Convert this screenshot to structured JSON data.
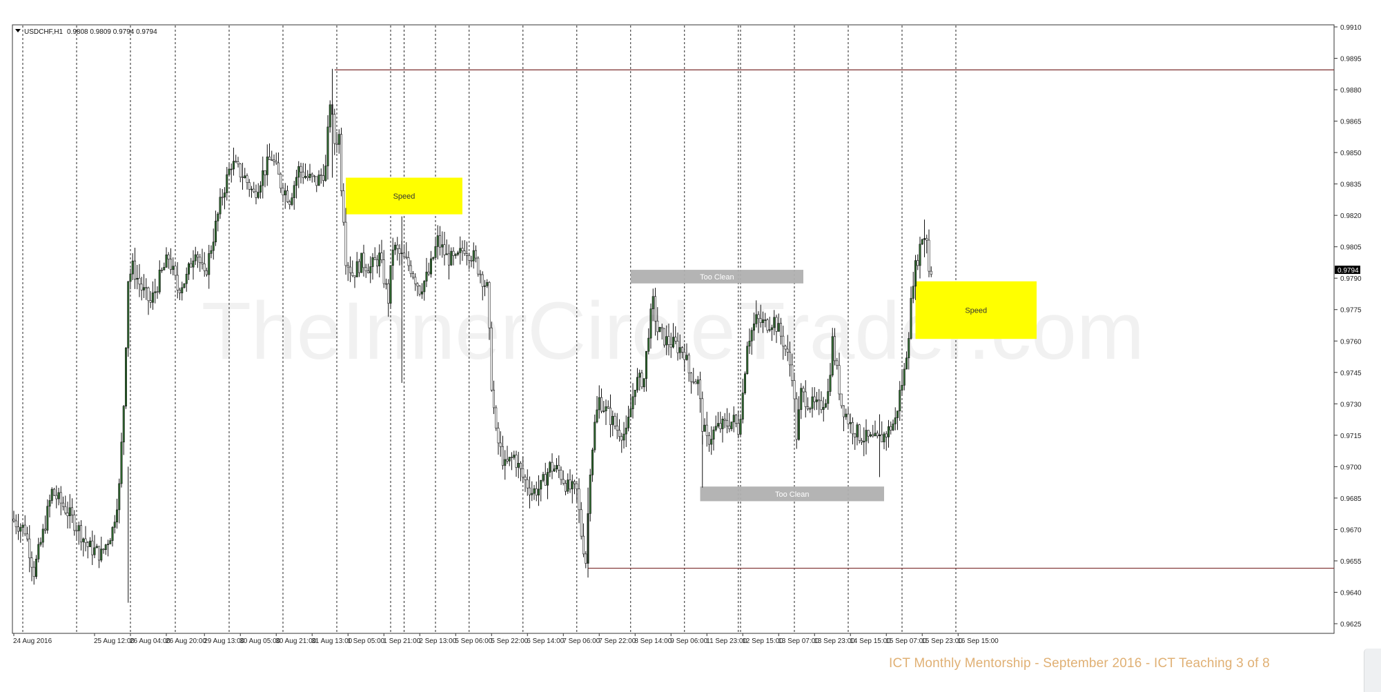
{
  "chart_data": {
    "type": "candlestick",
    "symbol": "USDCHF,H1",
    "ohlc_readout": "0.9808 0.9809 0.9794 0.9794",
    "current_price": "0.9794",
    "ylim": [
      0.9618,
      0.9912
    ],
    "y_ticks": [
      "0.9910",
      "0.9895",
      "0.9880",
      "0.9865",
      "0.9850",
      "0.9835",
      "0.9820",
      "0.9805",
      "0.9790",
      "0.9775",
      "0.9760",
      "0.9745",
      "0.9730",
      "0.9715",
      "0.9700",
      "0.9685",
      "0.9670",
      "0.9655",
      "0.9640",
      "0.9625"
    ],
    "x_ticks": [
      {
        "label": "24 Aug 2016",
        "hour": 0
      },
      {
        "label": "25 Aug 12:00",
        "hour": 36
      },
      {
        "label": "26 Aug 04:00",
        "hour": 52
      },
      {
        "label": "26 Aug 20:00",
        "hour": 68
      },
      {
        "label": "29 Aug 13:00",
        "hour": 85
      },
      {
        "label": "30 Aug 05:00",
        "hour": 101
      },
      {
        "label": "30 Aug 21:00",
        "hour": 117
      },
      {
        "label": "31 Aug 13:00",
        "hour": 133
      },
      {
        "label": "1 Sep 05:00",
        "hour": 149
      },
      {
        "label": "1 Sep 21:00",
        "hour": 165
      },
      {
        "label": "2 Sep 13:00",
        "hour": 181
      },
      {
        "label": "5 Sep 06:00",
        "hour": 197
      },
      {
        "label": "5 Sep 22:00",
        "hour": 213
      },
      {
        "label": "6 Sep 14:00",
        "hour": 229
      },
      {
        "label": "7 Sep 06:00",
        "hour": 245
      },
      {
        "label": "7 Sep 22:00",
        "hour": 261
      },
      {
        "label": "8 Sep 14:00",
        "hour": 277
      },
      {
        "label": "9 Sep 06:00",
        "hour": 293
      },
      {
        "label": "11 Sep 23:00",
        "hour": 309
      },
      {
        "label": "12 Sep 15:00",
        "hour": 325
      },
      {
        "label": "13 Sep 07:00",
        "hour": 341
      },
      {
        "label": "13 Sep 23:00",
        "hour": 357
      },
      {
        "label": "14 Sep 15:00",
        "hour": 373
      },
      {
        "label": "15 Sep 07:00",
        "hour": 389
      },
      {
        "label": "15 Sep 23:00",
        "hour": 405
      },
      {
        "label": "16 Sep 15:00",
        "hour": 421
      }
    ],
    "period_separators_hours": [
      4,
      28,
      52,
      72,
      96,
      120,
      144,
      168,
      174,
      188,
      203,
      227,
      251,
      275,
      299,
      323,
      324,
      348,
      372,
      396,
      420
    ],
    "price_path": [
      [
        0,
        0.9675
      ],
      [
        6,
        0.967
      ],
      [
        10,
        0.965
      ],
      [
        14,
        0.9668
      ],
      [
        18,
        0.9688
      ],
      [
        24,
        0.968
      ],
      [
        30,
        0.967
      ],
      [
        34,
        0.9662
      ],
      [
        40,
        0.9658
      ],
      [
        45,
        0.967
      ],
      [
        48,
        0.969
      ],
      [
        50,
        0.973
      ],
      [
        52,
        0.979
      ],
      [
        54,
        0.9795
      ],
      [
        58,
        0.9785
      ],
      [
        62,
        0.9778
      ],
      [
        66,
        0.979
      ],
      [
        70,
        0.98
      ],
      [
        74,
        0.9785
      ],
      [
        78,
        0.979
      ],
      [
        82,
        0.9805
      ],
      [
        86,
        0.979
      ],
      [
        90,
        0.981
      ],
      [
        94,
        0.983
      ],
      [
        98,
        0.9845
      ],
      [
        104,
        0.9838
      ],
      [
        108,
        0.983
      ],
      [
        112,
        0.984
      ],
      [
        116,
        0.9848
      ],
      [
        120,
        0.9835
      ],
      [
        124,
        0.9828
      ],
      [
        128,
        0.9842
      ],
      [
        132,
        0.9838
      ],
      [
        136,
        0.9836
      ],
      [
        140,
        0.9842
      ],
      [
        142,
        0.9875
      ],
      [
        144,
        0.9855
      ],
      [
        146,
        0.9858
      ],
      [
        147,
        0.9835
      ],
      [
        148,
        0.982
      ],
      [
        149,
        0.98
      ],
      [
        152,
        0.9792
      ],
      [
        156,
        0.9798
      ],
      [
        160,
        0.9795
      ],
      [
        164,
        0.98
      ],
      [
        166,
        0.979
      ],
      [
        168,
        0.978
      ],
      [
        170,
        0.9805
      ],
      [
        174,
        0.98
      ],
      [
        178,
        0.9795
      ],
      [
        182,
        0.9785
      ],
      [
        186,
        0.9792
      ],
      [
        190,
        0.9808
      ],
      [
        194,
        0.98
      ],
      [
        198,
        0.9798
      ],
      [
        202,
        0.9805
      ],
      [
        206,
        0.98
      ],
      [
        210,
        0.979
      ],
      [
        212,
        0.9785
      ],
      [
        214,
        0.974
      ],
      [
        216,
        0.9715
      ],
      [
        220,
        0.97
      ],
      [
        224,
        0.9705
      ],
      [
        228,
        0.9695
      ],
      [
        232,
        0.9688
      ],
      [
        236,
        0.969
      ],
      [
        240,
        0.97
      ],
      [
        244,
        0.9698
      ],
      [
        248,
        0.969
      ],
      [
        252,
        0.9688
      ],
      [
        254,
        0.9668
      ],
      [
        256,
        0.9655
      ],
      [
        258,
        0.97
      ],
      [
        260,
        0.972
      ],
      [
        262,
        0.9732
      ],
      [
        266,
        0.9725
      ],
      [
        270,
        0.9718
      ],
      [
        274,
        0.9715
      ],
      [
        278,
        0.974
      ],
      [
        282,
        0.9742
      ],
      [
        284,
        0.9765
      ],
      [
        286,
        0.9778
      ],
      [
        288,
        0.9765
      ],
      [
        292,
        0.976
      ],
      [
        296,
        0.9758
      ],
      [
        300,
        0.9755
      ],
      [
        302,
        0.9745
      ],
      [
        306,
        0.974
      ],
      [
        308,
        0.972
      ],
      [
        310,
        0.9712
      ],
      [
        314,
        0.9718
      ],
      [
        318,
        0.972
      ],
      [
        322,
        0.9722
      ],
      [
        324,
        0.9718
      ],
      [
        326,
        0.9735
      ],
      [
        328,
        0.976
      ],
      [
        332,
        0.977
      ],
      [
        336,
        0.9768
      ],
      [
        340,
        0.977
      ],
      [
        344,
        0.976
      ],
      [
        348,
        0.9745
      ],
      [
        350,
        0.9715
      ],
      [
        352,
        0.9735
      ],
      [
        356,
        0.973
      ],
      [
        360,
        0.9728
      ],
      [
        364,
        0.9735
      ],
      [
        366,
        0.976
      ],
      [
        368,
        0.9745
      ],
      [
        370,
        0.973
      ],
      [
        374,
        0.972
      ],
      [
        378,
        0.9715
      ],
      [
        382,
        0.9713
      ],
      [
        386,
        0.9712
      ],
      [
        390,
        0.9716
      ],
      [
        394,
        0.9722
      ],
      [
        396,
        0.9735
      ],
      [
        398,
        0.9745
      ],
      [
        400,
        0.9765
      ],
      [
        402,
        0.979
      ],
      [
        404,
        0.98
      ],
      [
        406,
        0.981
      ],
      [
        408,
        0.981
      ],
      [
        409,
        0.9794
      ]
    ],
    "horizontal_lines": [
      {
        "price": 0.98895,
        "from_hour": 143
      },
      {
        "price": 0.96515,
        "from_hour": 256
      }
    ],
    "annotations": [
      {
        "label": "Speed",
        "from_hour": 148,
        "to_hour": 200,
        "top": 0.9838,
        "bottom": 0.98205,
        "color": "#ffff00",
        "text_color": "#333333"
      },
      {
        "label": "Too Clean",
        "from_hour": 275,
        "to_hour": 352,
        "top": 0.9794,
        "bottom": 0.97875,
        "color": "#b0b0b0",
        "text_color": "#ffffff"
      },
      {
        "label": "Too Clean",
        "from_hour": 306,
        "to_hour": 388,
        "top": 0.96905,
        "bottom": 0.96835,
        "color": "#b0b0b0",
        "text_color": "#ffffff"
      },
      {
        "label": "Speed",
        "from_hour": 402,
        "to_hour": 456,
        "top": 0.97885,
        "bottom": 0.9761,
        "color": "#ffff00",
        "text_color": "#333333"
      }
    ],
    "watermark": "TheInnerCircleTrader.com"
  },
  "footer_text": "ICT Monthly Mentorship - September 2016 - ICT Teaching  3 of 8"
}
